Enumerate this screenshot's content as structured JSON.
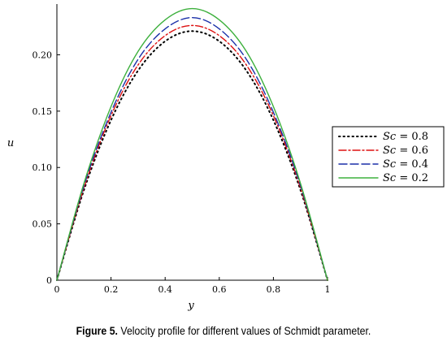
{
  "caption": {
    "label": "Figure 5.",
    "text": " Velocity profile for different values of Schmidt parameter."
  },
  "chart_data": {
    "type": "line",
    "xlabel": "y",
    "ylabel": "u",
    "xlim": [
      0,
      1
    ],
    "ylim": [
      0,
      0.245
    ],
    "xticks": [
      0,
      0.2,
      0.4,
      0.6,
      0.8,
      1
    ],
    "xtick_labels": [
      "0",
      "0.2",
      "0.4",
      "0.6",
      "0.8",
      "1"
    ],
    "yticks": [
      0,
      0.05,
      0.1,
      0.15,
      0.2
    ],
    "ytick_labels": [
      "0",
      "0.05",
      "0.10",
      "0.15",
      "0.20"
    ],
    "grid": false,
    "legend_position": "right",
    "x": [
      0,
      0.1,
      0.2,
      0.3,
      0.4,
      0.5,
      0.6,
      0.7,
      0.8,
      0.9,
      1
    ],
    "series": [
      {
        "name": "Sc = 0.8",
        "sc": "Sc",
        "value": " = 0.8",
        "color": "#000000",
        "dash": "1.5,4",
        "width": 2,
        "values": [
          0,
          0.08,
          0.142,
          0.186,
          0.212,
          0.221,
          0.212,
          0.186,
          0.142,
          0.08,
          0
        ]
      },
      {
        "name": "Sc = 0.6",
        "sc": "Sc",
        "value": " = 0.6",
        "color": "#dd1111",
        "dash": "9,3,2,3",
        "width": 1.4,
        "values": [
          0,
          0.082,
          0.146,
          0.191,
          0.217,
          0.226,
          0.217,
          0.191,
          0.146,
          0.082,
          0
        ]
      },
      {
        "name": "Sc = 0.4",
        "sc": "Sc",
        "value": " = 0.4",
        "color": "#1a2fa8",
        "dash": "10,4",
        "width": 1.4,
        "values": [
          0,
          0.084,
          0.149,
          0.196,
          0.223,
          0.233,
          0.223,
          0.196,
          0.149,
          0.084,
          0
        ]
      },
      {
        "name": "Sc = 0.2",
        "sc": "Sc",
        "value": " = 0.2",
        "color": "#3db03d",
        "dash": "",
        "width": 1.4,
        "values": [
          0,
          0.086,
          0.154,
          0.203,
          0.231,
          0.241,
          0.231,
          0.203,
          0.154,
          0.086,
          0
        ]
      }
    ]
  }
}
